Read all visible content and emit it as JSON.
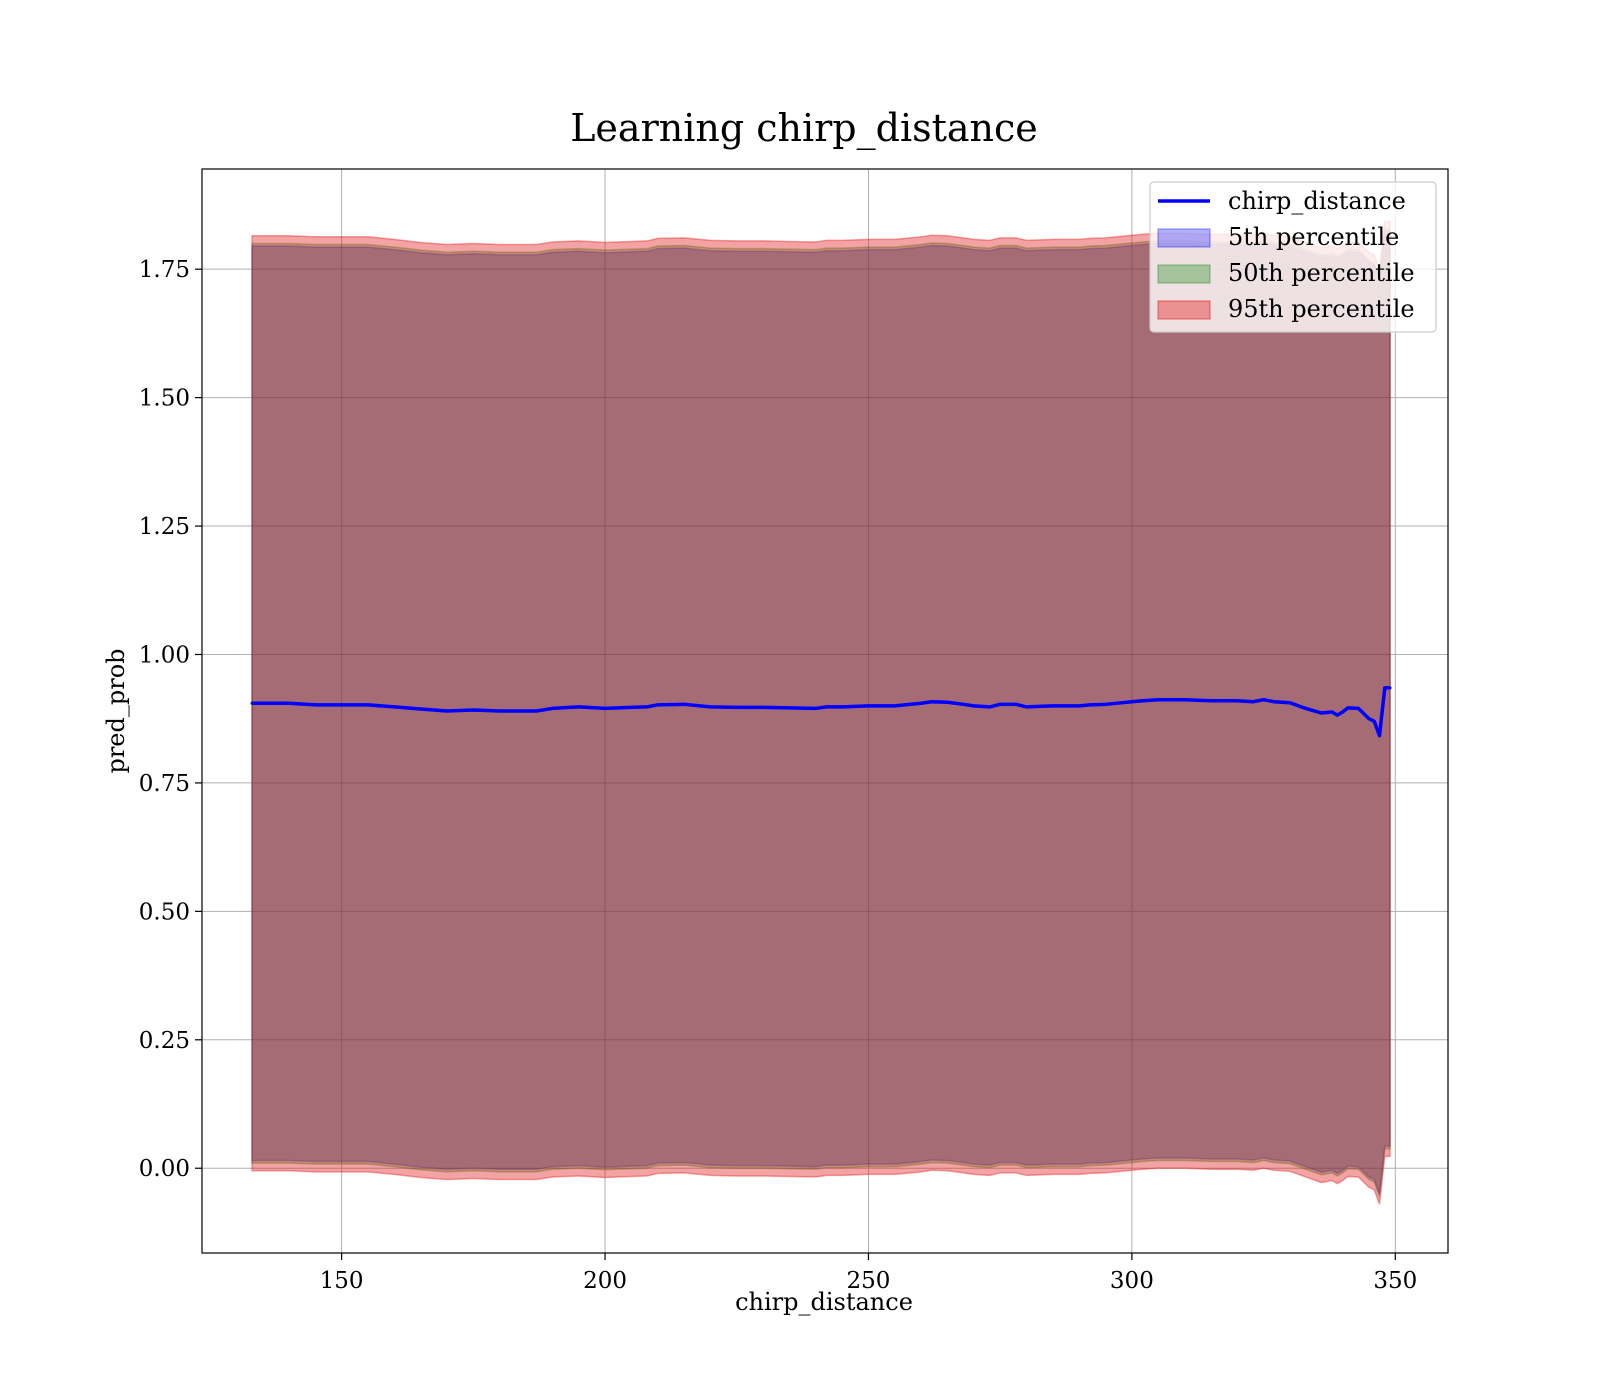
{
  "chart_data": {
    "type": "line",
    "title": "Learning chirp_distance",
    "xlabel": "chirp_distance",
    "ylabel": "pred_prob",
    "xlim": [
      123.5,
      360
    ],
    "ylim": [
      -0.165,
      1.945
    ],
    "xticks": [
      150,
      200,
      250,
      300,
      350
    ],
    "xtick_labels": [
      "150",
      "200",
      "250",
      "300",
      "350"
    ],
    "yticks": [
      0.0,
      0.25,
      0.5,
      0.75,
      1.0,
      1.25,
      1.5,
      1.75
    ],
    "ytick_labels": [
      "0.00",
      "0.25",
      "0.50",
      "0.75",
      "1.00",
      "1.25",
      "1.50",
      "1.75"
    ],
    "grid": true,
    "legend_position": "top-right",
    "x": [
      133,
      140,
      145,
      155,
      160,
      165,
      170,
      175,
      180,
      187,
      190,
      195,
      200,
      205,
      208,
      210,
      215,
      220,
      225,
      230,
      235,
      240,
      242,
      245,
      250,
      253,
      255,
      260,
      262,
      265,
      268,
      270,
      273,
      275,
      278,
      280,
      285,
      290,
      292,
      295,
      300,
      302,
      305,
      310,
      315,
      320,
      323,
      325,
      327,
      330,
      333,
      336,
      338,
      339,
      340,
      341,
      343,
      345,
      346,
      347,
      348,
      349
    ],
    "series": [
      {
        "name": "chirp_distance",
        "color": "#0000ff",
        "values": [
          0.905,
          0.905,
          0.902,
          0.902,
          0.898,
          0.894,
          0.89,
          0.892,
          0.89,
          0.89,
          0.895,
          0.898,
          0.895,
          0.897,
          0.898,
          0.902,
          0.903,
          0.898,
          0.897,
          0.897,
          0.896,
          0.895,
          0.898,
          0.898,
          0.9,
          0.9,
          0.9,
          0.905,
          0.908,
          0.907,
          0.903,
          0.9,
          0.898,
          0.903,
          0.903,
          0.898,
          0.9,
          0.9,
          0.902,
          0.903,
          0.908,
          0.91,
          0.912,
          0.912,
          0.91,
          0.91,
          0.908,
          0.912,
          0.908,
          0.906,
          0.895,
          0.886,
          0.888,
          0.882,
          0.888,
          0.896,
          0.895,
          0.875,
          0.87,
          0.842,
          0.935,
          0.935
        ]
      }
    ],
    "bands": [
      {
        "name": "5th percentile",
        "color": "#0000ff",
        "opacity": 0.3,
        "lower": [
          0.015,
          0.015,
          0.013,
          0.013,
          0.008,
          0.002,
          -0.002,
          0.0,
          -0.002,
          -0.002,
          0.003,
          0.005,
          0.002,
          0.004,
          0.005,
          0.01,
          0.011,
          0.006,
          0.005,
          0.005,
          0.004,
          0.003,
          0.006,
          0.006,
          0.008,
          0.008,
          0.008,
          0.013,
          0.016,
          0.015,
          0.011,
          0.008,
          0.006,
          0.011,
          0.011,
          0.006,
          0.008,
          0.008,
          0.01,
          0.011,
          0.016,
          0.018,
          0.02,
          0.02,
          0.018,
          0.018,
          0.016,
          0.02,
          0.016,
          0.014,
          0.003,
          -0.008,
          -0.004,
          -0.01,
          -0.004,
          0.004,
          0.003,
          -0.017,
          -0.022,
          -0.05,
          0.043,
          0.043
        ],
        "upper": [
          1.795,
          1.795,
          1.793,
          1.793,
          1.788,
          1.782,
          1.778,
          1.78,
          1.778,
          1.778,
          1.783,
          1.785,
          1.782,
          1.784,
          1.785,
          1.79,
          1.791,
          1.786,
          1.785,
          1.785,
          1.784,
          1.783,
          1.786,
          1.786,
          1.788,
          1.788,
          1.788,
          1.793,
          1.796,
          1.795,
          1.791,
          1.788,
          1.786,
          1.791,
          1.791,
          1.786,
          1.788,
          1.788,
          1.79,
          1.791,
          1.796,
          1.798,
          1.8,
          1.8,
          1.798,
          1.798,
          1.796,
          1.8,
          1.796,
          1.794,
          1.783,
          1.772,
          1.776,
          1.77,
          1.776,
          1.784,
          1.783,
          1.763,
          1.758,
          1.73,
          1.823,
          1.823
        ]
      },
      {
        "name": "50th percentile",
        "color": "#008000",
        "opacity": 0.3,
        "lower": [
          0.01,
          0.01,
          0.008,
          0.008,
          0.003,
          -0.003,
          -0.007,
          -0.005,
          -0.007,
          -0.007,
          -0.002,
          0.0,
          -0.003,
          -0.001,
          0.0,
          0.005,
          0.006,
          0.001,
          0.0,
          0.0,
          -0.001,
          -0.002,
          0.001,
          0.001,
          0.003,
          0.003,
          0.003,
          0.008,
          0.011,
          0.01,
          0.006,
          0.003,
          0.001,
          0.006,
          0.006,
          0.001,
          0.003,
          0.003,
          0.005,
          0.006,
          0.011,
          0.013,
          0.015,
          0.015,
          0.013,
          0.013,
          0.011,
          0.015,
          0.011,
          0.009,
          -0.002,
          -0.013,
          -0.009,
          -0.015,
          -0.009,
          -0.001,
          -0.002,
          -0.022,
          -0.027,
          -0.055,
          0.038,
          0.038
        ],
        "upper": [
          1.8,
          1.8,
          1.798,
          1.798,
          1.793,
          1.787,
          1.783,
          1.785,
          1.783,
          1.783,
          1.788,
          1.79,
          1.787,
          1.789,
          1.79,
          1.795,
          1.796,
          1.791,
          1.79,
          1.79,
          1.789,
          1.788,
          1.791,
          1.791,
          1.793,
          1.793,
          1.793,
          1.798,
          1.801,
          1.8,
          1.796,
          1.793,
          1.791,
          1.796,
          1.796,
          1.791,
          1.793,
          1.793,
          1.795,
          1.796,
          1.801,
          1.803,
          1.805,
          1.805,
          1.803,
          1.803,
          1.801,
          1.805,
          1.801,
          1.799,
          1.788,
          1.777,
          1.781,
          1.775,
          1.781,
          1.789,
          1.788,
          1.768,
          1.763,
          1.735,
          1.828,
          1.828
        ]
      },
      {
        "name": "95th percentile",
        "color": "#e41a1c",
        "opacity": 0.4,
        "lower": [
          -0.005,
          -0.005,
          -0.007,
          -0.007,
          -0.012,
          -0.018,
          -0.022,
          -0.02,
          -0.022,
          -0.022,
          -0.017,
          -0.015,
          -0.018,
          -0.016,
          -0.015,
          -0.01,
          -0.009,
          -0.014,
          -0.015,
          -0.015,
          -0.016,
          -0.017,
          -0.014,
          -0.014,
          -0.012,
          -0.012,
          -0.012,
          -0.007,
          -0.004,
          -0.005,
          -0.009,
          -0.012,
          -0.014,
          -0.009,
          -0.009,
          -0.014,
          -0.012,
          -0.012,
          -0.01,
          -0.009,
          -0.004,
          -0.002,
          0.0,
          0.0,
          -0.002,
          -0.002,
          -0.004,
          0.0,
          -0.004,
          -0.006,
          -0.017,
          -0.028,
          -0.024,
          -0.03,
          -0.024,
          -0.016,
          -0.017,
          -0.037,
          -0.042,
          -0.07,
          0.023,
          0.023
        ],
        "upper": [
          1.815,
          1.815,
          1.813,
          1.813,
          1.808,
          1.802,
          1.798,
          1.8,
          1.798,
          1.798,
          1.803,
          1.805,
          1.802,
          1.804,
          1.805,
          1.81,
          1.811,
          1.806,
          1.805,
          1.805,
          1.804,
          1.803,
          1.806,
          1.806,
          1.808,
          1.808,
          1.808,
          1.813,
          1.816,
          1.815,
          1.811,
          1.808,
          1.806,
          1.811,
          1.811,
          1.806,
          1.808,
          1.808,
          1.81,
          1.811,
          1.816,
          1.818,
          1.82,
          1.82,
          1.818,
          1.818,
          1.816,
          1.82,
          1.816,
          1.814,
          1.803,
          1.792,
          1.796,
          1.79,
          1.796,
          1.804,
          1.803,
          1.783,
          1.778,
          1.75,
          1.843,
          1.843
        ]
      }
    ]
  }
}
